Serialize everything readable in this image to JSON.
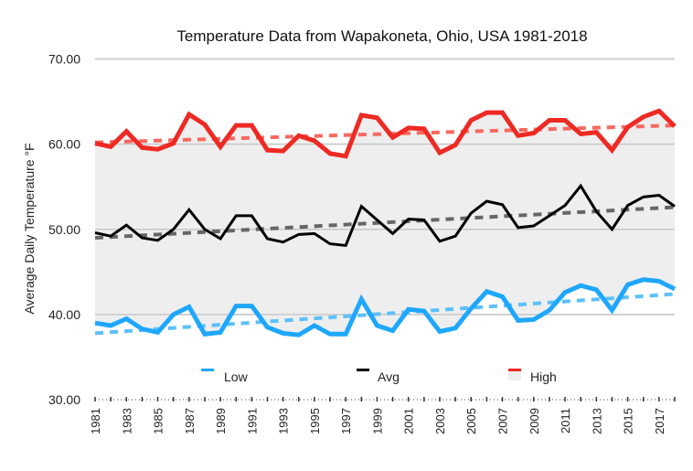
{
  "chart_data": {
    "type": "line",
    "title": "Temperature Data from Wapakoneta, Ohio, USA 1981-2018",
    "xlabel": "",
    "ylabel": "Average Daily Temperature °F",
    "ylim": [
      30,
      70
    ],
    "yticks": [
      30,
      40,
      50,
      60,
      70
    ],
    "ytick_labels": [
      "30.00",
      "40.00",
      "50.00",
      "60.00",
      "70.00"
    ],
    "grid": true,
    "legend_position": "bottom",
    "x": [
      1981,
      1982,
      1983,
      1984,
      1985,
      1986,
      1987,
      1988,
      1989,
      1990,
      1991,
      1992,
      1993,
      1994,
      1995,
      1996,
      1997,
      1998,
      1999,
      2000,
      2001,
      2002,
      2003,
      2004,
      2005,
      2006,
      2007,
      2008,
      2009,
      2010,
      2011,
      2012,
      2013,
      2014,
      2015,
      2016,
      2017,
      2018
    ],
    "xtick_labels": [
      "1981",
      "1983",
      "1985",
      "1987",
      "1989",
      "1991",
      "1993",
      "1995",
      "1997",
      "1999",
      "2001",
      "2003",
      "2005",
      "2007",
      "2009",
      "2011",
      "2013",
      "2015",
      "2017"
    ],
    "series": [
      {
        "name": "Low",
        "color": "#1ea7fd",
        "trend_color": "#5bc0fb",
        "values": [
          39.0,
          38.7,
          39.5,
          38.3,
          37.9,
          40.0,
          40.9,
          37.7,
          37.9,
          41.0,
          41.0,
          38.5,
          37.8,
          37.6,
          38.7,
          37.7,
          37.7,
          41.8,
          38.7,
          38.1,
          40.6,
          40.4,
          38.0,
          38.4,
          40.7,
          42.7,
          42.1,
          39.3,
          39.4,
          40.5,
          42.6,
          43.4,
          42.9,
          40.5,
          43.5,
          44.1,
          43.9,
          43.0
        ],
        "trend": [
          37.8,
          42.4
        ]
      },
      {
        "name": "Avg",
        "color": "#000000",
        "trend_color": "#666666",
        "values": [
          49.6,
          49.2,
          50.5,
          49.0,
          48.7,
          50.0,
          52.3,
          50.0,
          48.9,
          51.6,
          51.6,
          48.9,
          48.5,
          49.4,
          49.5,
          48.3,
          48.1,
          52.7,
          51.1,
          49.5,
          51.2,
          51.1,
          48.6,
          49.2,
          51.9,
          53.3,
          52.9,
          50.2,
          50.4,
          51.6,
          52.8,
          55.1,
          52.1,
          50.0,
          52.8,
          53.8,
          54.0,
          52.7
        ],
        "trend": [
          49.0,
          52.6
        ]
      },
      {
        "name": "High",
        "color": "#ee2a24",
        "trend_color": "#f8685f",
        "fill_color": "#eeeeee",
        "values": [
          60.1,
          59.7,
          61.5,
          59.6,
          59.4,
          60.1,
          63.5,
          62.3,
          59.7,
          62.2,
          62.2,
          59.3,
          59.2,
          61.0,
          60.4,
          58.9,
          58.6,
          63.4,
          63.1,
          60.8,
          61.9,
          61.8,
          59.0,
          59.9,
          62.8,
          63.7,
          63.7,
          61.0,
          61.3,
          62.8,
          62.8,
          61.2,
          61.4,
          59.3,
          62.0,
          63.2,
          63.9,
          62.1
        ],
        "trend": [
          60.2,
          62.2
        ]
      }
    ]
  }
}
